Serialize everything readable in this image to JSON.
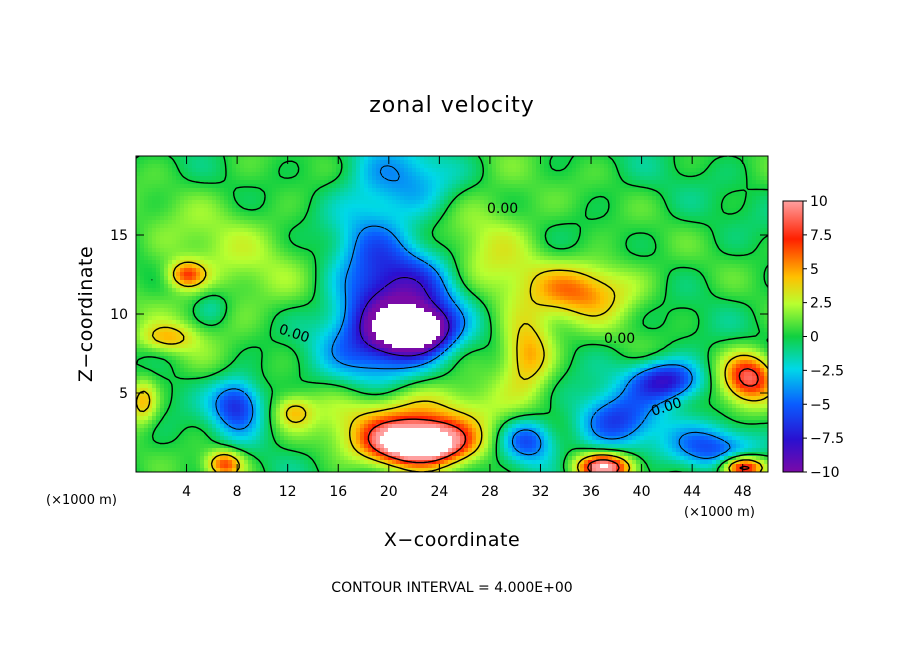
{
  "chart_data": {
    "type": "heatmap",
    "title": "zonal velocity",
    "xlabel": "X−coordinate",
    "ylabel": "Z−coordinate",
    "x_unit_left": "(×1000 m)",
    "x_unit_right": "(×1000 m)",
    "xlim": [
      0,
      50
    ],
    "ylim": [
      0,
      20
    ],
    "xticks": [
      4,
      8,
      12,
      16,
      20,
      24,
      28,
      32,
      36,
      40,
      44,
      48
    ],
    "yticks": [
      5,
      10,
      15
    ],
    "colorbar": {
      "range": [
        -10,
        10
      ],
      "ticks": [
        10,
        7.5,
        5,
        2.5,
        0,
        -2.5,
        -5,
        -7.5,
        -10
      ],
      "tick_labels": [
        "10",
        "7.5",
        "5",
        "2.5",
        "0",
        "−2.5",
        "−5",
        "−7.5",
        "−10"
      ]
    },
    "contour_labels": [
      "0.00",
      "0.00",
      "0.00",
      "0.00"
    ],
    "footnote": "CONTOUR INTERVAL = 4.000E+00",
    "blobs": [
      {
        "x": 22.0,
        "z": 9.0,
        "v": -13,
        "sx": 1.8,
        "sz": 0.9
      },
      {
        "x": 21.5,
        "z": 10.8,
        "v": -7,
        "sx": 3.2,
        "sz": 2.6
      },
      {
        "x": 19.0,
        "z": 8.5,
        "v": -5,
        "sx": 3.0,
        "sz": 2.0
      },
      {
        "x": 18.5,
        "z": 15.5,
        "v": -3,
        "sx": 2.2,
        "sz": 3.5
      },
      {
        "x": 22.0,
        "z": 18.5,
        "v": -3,
        "sx": 2.5,
        "sz": 1.5
      },
      {
        "x": 8.0,
        "z": 4.3,
        "v": -7,
        "sx": 1.4,
        "sz": 1.2
      },
      {
        "x": 38.0,
        "z": 3.2,
        "v": -6,
        "sx": 2.2,
        "sz": 1.3
      },
      {
        "x": 42.0,
        "z": 5.8,
        "v": -8,
        "sx": 2.0,
        "sz": 0.9
      },
      {
        "x": 45.5,
        "z": 1.5,
        "v": -5,
        "sx": 2.5,
        "sz": 1.0
      },
      {
        "x": 31.0,
        "z": 2.0,
        "v": -6,
        "sx": 1.5,
        "sz": 1.0
      },
      {
        "x": 6.0,
        "z": 10.5,
        "v": -2,
        "sx": 1.0,
        "sz": 0.8
      },
      {
        "x": 22.5,
        "z": 1.8,
        "v": 13,
        "sx": 2.6,
        "sz": 0.9
      },
      {
        "x": 22.0,
        "z": 3.2,
        "v": 6,
        "sx": 4.5,
        "sz": 1.6
      },
      {
        "x": 31.0,
        "z": 7.5,
        "v": 6,
        "sx": 1.4,
        "sz": 1.6
      },
      {
        "x": 35.5,
        "z": 11.5,
        "v": 6,
        "sx": 3.0,
        "sz": 1.3
      },
      {
        "x": 48.5,
        "z": 6.0,
        "v": 9,
        "sx": 1.5,
        "sz": 1.1
      },
      {
        "x": 37.0,
        "z": 0.3,
        "v": 11,
        "sx": 1.5,
        "sz": 0.6
      },
      {
        "x": 48.0,
        "z": 0.3,
        "v": 11,
        "sx": 1.2,
        "sz": 0.5
      },
      {
        "x": 4.0,
        "z": 12.5,
        "v": 6,
        "sx": 1.0,
        "sz": 0.6
      },
      {
        "x": 7.0,
        "z": 0.5,
        "v": 7,
        "sx": 1.0,
        "sz": 0.6
      },
      {
        "x": 2.5,
        "z": 8.5,
        "v": 4,
        "sx": 1.5,
        "sz": 0.6
      },
      {
        "x": 12.5,
        "z": 3.8,
        "v": 4,
        "sx": 1.0,
        "sz": 0.7
      },
      {
        "x": 0.5,
        "z": 4.5,
        "v": 5,
        "sx": 0.8,
        "sz": 1.0
      },
      {
        "x": 28.0,
        "z": 14.0,
        "v": 3,
        "sx": 3.0,
        "sz": 3.0
      },
      {
        "x": 7.0,
        "z": 13.0,
        "v": 2,
        "sx": 5.0,
        "sz": 3.5
      }
    ]
  }
}
